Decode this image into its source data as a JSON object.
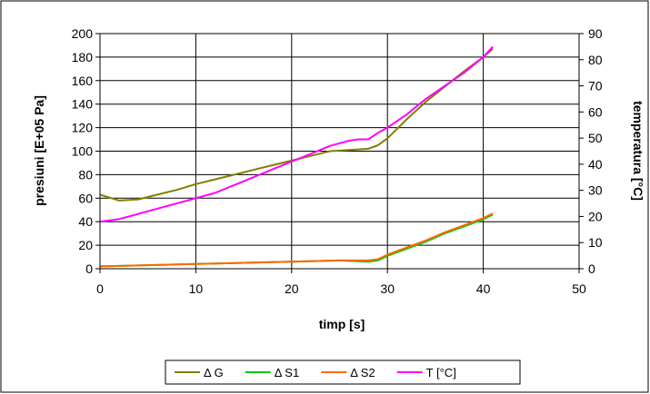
{
  "chart_data": {
    "type": "line",
    "title": "",
    "xlabel": "timp [s]",
    "ylabel": "presiuni [E+05 Pa]",
    "y2label": "temperatura [°C]",
    "xlim": [
      0,
      50
    ],
    "ylim": [
      0,
      200
    ],
    "y2lim": [
      0,
      90
    ],
    "xticks": [
      "0",
      "10",
      "20",
      "30",
      "40",
      "50"
    ],
    "yticks": [
      "0",
      "20",
      "40",
      "60",
      "80",
      "100",
      "120",
      "140",
      "160",
      "180",
      "200"
    ],
    "y2ticks": [
      "0",
      "10",
      "20",
      "30",
      "40",
      "50",
      "60",
      "70",
      "80",
      "90"
    ],
    "grid": true,
    "legend_position": "bottom",
    "series": [
      {
        "name": "Δ G",
        "axis": "left",
        "color": "#808000",
        "x": [
          0,
          2,
          4,
          6,
          8,
          10,
          12,
          14,
          16,
          18,
          20,
          22,
          24,
          26,
          28,
          29,
          30,
          32,
          34,
          36,
          38,
          40,
          41
        ],
        "y": [
          63,
          58,
          59,
          63,
          67,
          72,
          76,
          80,
          84,
          88,
          92,
          96,
          100,
          101,
          102,
          105,
          111,
          127,
          142,
          155,
          168,
          180,
          187
        ]
      },
      {
        "name": "Δ S1",
        "axis": "left",
        "color": "#00cc00",
        "x": [
          0,
          5,
          10,
          15,
          20,
          25,
          28,
          29,
          30,
          32,
          34,
          36,
          38,
          40,
          41
        ],
        "y": [
          2,
          3,
          4,
          5,
          6,
          7,
          6,
          7,
          11,
          17,
          23,
          30,
          36,
          42,
          46
        ]
      },
      {
        "name": "Δ S2",
        "axis": "left",
        "color": "#ff6600",
        "x": [
          0,
          5,
          10,
          15,
          20,
          25,
          28,
          29,
          30,
          32,
          34,
          36,
          38,
          40,
          41
        ],
        "y": [
          2,
          3,
          4,
          5,
          6,
          7,
          7,
          8,
          12,
          18,
          24,
          31,
          37,
          43,
          47
        ]
      },
      {
        "name": "T [°C]",
        "axis": "right",
        "color": "#ff00ff",
        "x": [
          0,
          2,
          4,
          6,
          8,
          10,
          12,
          14,
          16,
          18,
          20,
          22,
          24,
          26,
          27,
          28,
          29,
          30,
          32,
          34,
          36,
          38,
          40,
          41
        ],
        "y": [
          18,
          19,
          21,
          23,
          25,
          27,
          29,
          32,
          35,
          38,
          41,
          44,
          47,
          49,
          49.5,
          49.5,
          52,
          54,
          59,
          65,
          70,
          75,
          81,
          85
        ]
      }
    ]
  }
}
